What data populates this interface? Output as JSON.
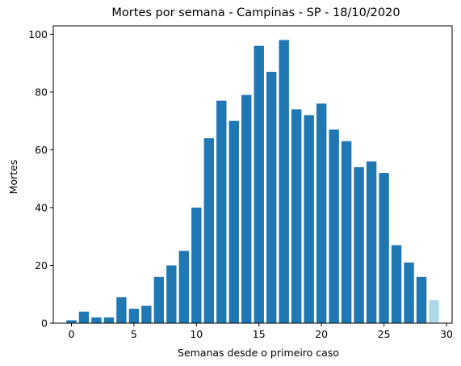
{
  "chart_data": {
    "type": "bar",
    "title": "Mortes por semana - Campinas - SP - 18/10/2020",
    "xlabel": "Semanas desde o primeiro caso",
    "ylabel": "Mortes",
    "x": [
      0,
      1,
      2,
      3,
      4,
      5,
      6,
      7,
      8,
      9,
      10,
      11,
      12,
      13,
      14,
      15,
      16,
      17,
      18,
      19,
      20,
      21,
      22,
      23,
      24,
      25,
      26,
      27,
      28,
      29
    ],
    "values": [
      1,
      4,
      2,
      2,
      9,
      5,
      6,
      16,
      20,
      25,
      40,
      64,
      77,
      70,
      79,
      96,
      87,
      98,
      74,
      72,
      76,
      67,
      63,
      54,
      56,
      52,
      27,
      21,
      16,
      8
    ],
    "bar_colors": [
      "#1f77b4",
      "#1f77b4",
      "#1f77b4",
      "#1f77b4",
      "#1f77b4",
      "#1f77b4",
      "#1f77b4",
      "#1f77b4",
      "#1f77b4",
      "#1f77b4",
      "#1f77b4",
      "#1f77b4",
      "#1f77b4",
      "#1f77b4",
      "#1f77b4",
      "#1f77b4",
      "#1f77b4",
      "#1f77b4",
      "#1f77b4",
      "#1f77b4",
      "#1f77b4",
      "#1f77b4",
      "#1f77b4",
      "#1f77b4",
      "#1f77b4",
      "#1f77b4",
      "#1f77b4",
      "#1f77b4",
      "#1f77b4",
      "#add8e6"
    ],
    "xlim": [
      -1.45,
      30.45
    ],
    "ylim": [
      0,
      102.9
    ],
    "xticks": [
      0,
      5,
      10,
      15,
      20,
      25,
      30
    ],
    "yticks": [
      0,
      20,
      40,
      60,
      80,
      100
    ],
    "bar_width": 0.8,
    "grid": false,
    "legend": "none"
  }
}
